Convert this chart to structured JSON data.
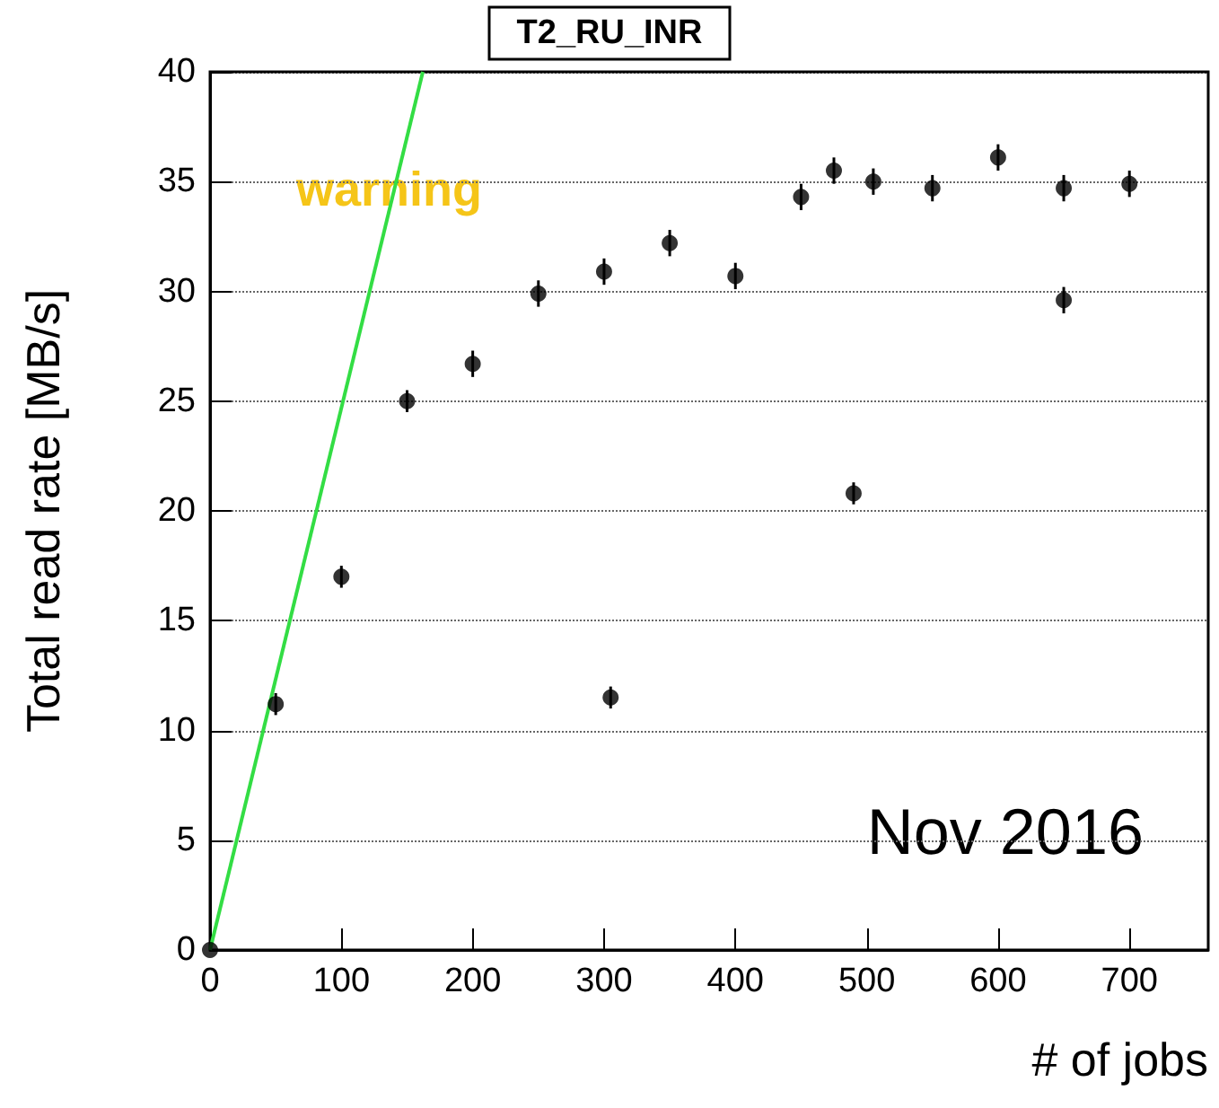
{
  "chart_data": {
    "type": "scatter",
    "title": "T2_RU_INR",
    "xlabel": "# of jobs",
    "ylabel": "Total read rate [MB/s]",
    "annotations": [
      "warning",
      "Nov 2016"
    ],
    "series": [
      {
        "color": "#000000",
        "marker": "circle",
        "x": [
          0,
          50,
          100,
          150,
          200,
          250,
          300,
          305,
          350,
          400,
          450,
          475,
          490,
          505,
          550,
          600,
          650,
          650,
          700
        ],
        "values": [
          0,
          11.2,
          17,
          25,
          26.7,
          29.9,
          30.9,
          11.5,
          32.2,
          30.7,
          34.3,
          35.5,
          20.8,
          35,
          34.7,
          36.1,
          34.7,
          29.6,
          34.9
        ],
        "errors": [
          null,
          0.5,
          0.5,
          0.5,
          0.6,
          0.6,
          0.6,
          0.5,
          0.6,
          0.6,
          0.6,
          0.6,
          0.5,
          0.6,
          0.6,
          0.6,
          0.6,
          0.6,
          0.6
        ]
      },
      {
        "type": "line",
        "color": "#33dd44",
        "marker": "none",
        "x": [
          0,
          162
        ],
        "values": [
          0,
          40
        ]
      }
    ],
    "xlim": [
      0,
      760
    ],
    "xticks": [
      0,
      100,
      200,
      300,
      400,
      500,
      600,
      700
    ],
    "ylim": [
      0,
      40
    ],
    "yticks": [
      0,
      5,
      10,
      15,
      20,
      25,
      30,
      35,
      40
    ],
    "grid": "y"
  }
}
